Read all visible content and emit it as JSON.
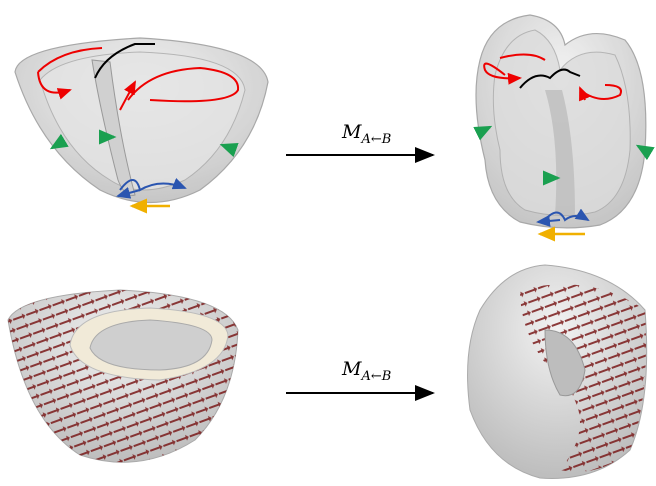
{
  "mappings": [
    {
      "symbol": "M",
      "subscript": "A←B"
    },
    {
      "symbol": "M",
      "subscript": "A←B"
    }
  ]
}
